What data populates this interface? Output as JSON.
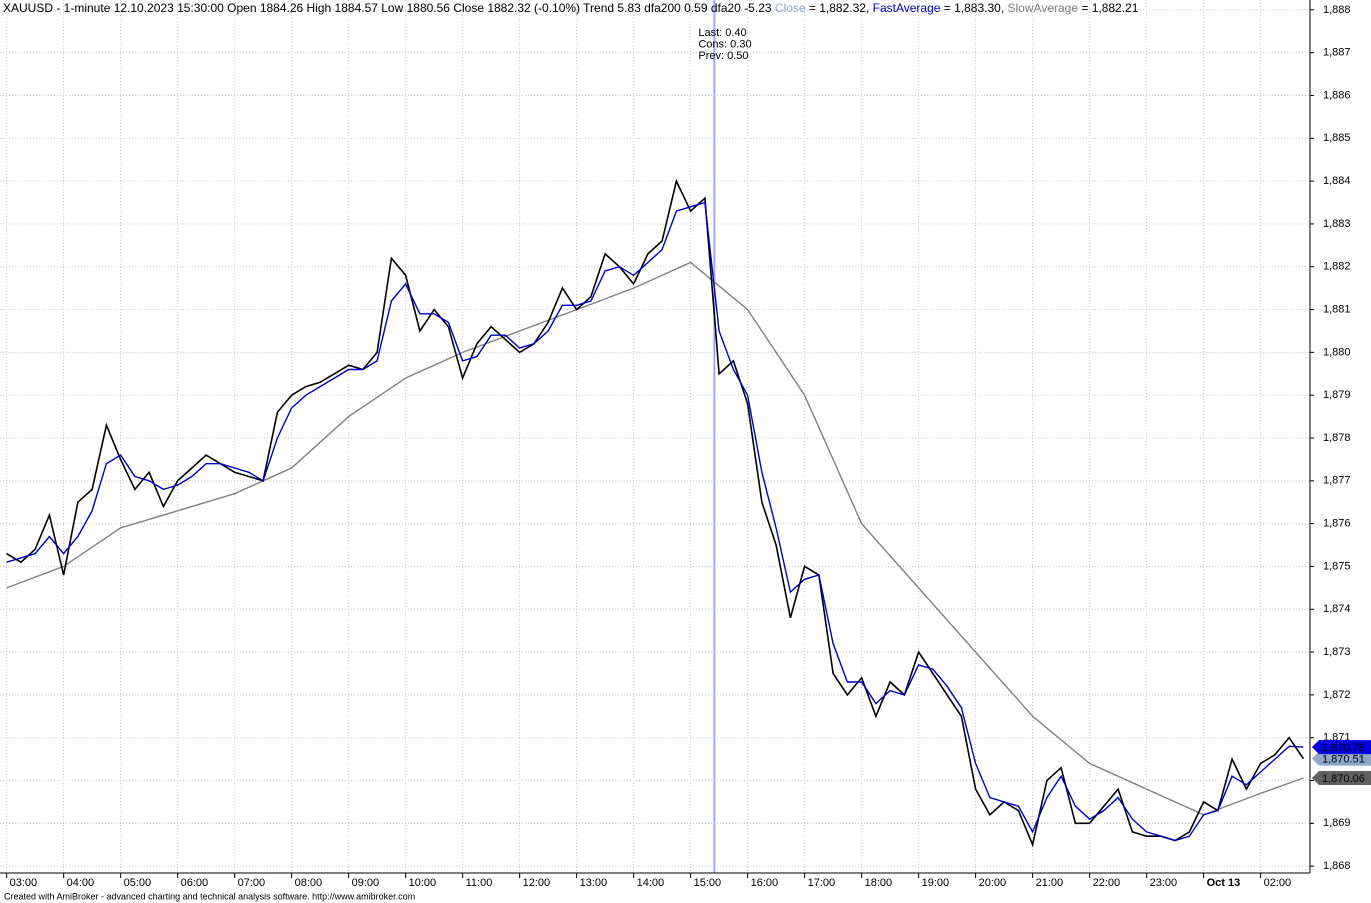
{
  "chart_data": {
    "type": "line",
    "title_parts": [
      {
        "text": "XAUUSD - 1-minute 12.10.2023 15:30:00 Open 1884.26 High 1884.57 Low 1880.56 Close 1882.32 (-0.10%) Trend 5.83 dfa200 0.59 dfa20 -5.23 ",
        "color": "#000000"
      },
      {
        "text": "Close",
        "color": "#8fa8c8"
      },
      {
        "text": " = 1,882.32, ",
        "color": "#000000"
      },
      {
        "text": "FastAverage",
        "color": "#0000c0"
      },
      {
        "text": " = 1,883.30, ",
        "color": "#000000"
      },
      {
        "text": "SlowAverage",
        "color": "#808080"
      },
      {
        "text": " = 1,882.21",
        "color": "#000000"
      }
    ],
    "cursor": {
      "x": 745,
      "color": "#9fa8ff",
      "label_color": "#008000",
      "labels": [
        "Last: 0.40",
        "Cons: 0.30",
        "Prev: 0.50"
      ]
    },
    "xlim": [
      -7,
      1372
    ],
    "xticks": [
      {
        "value": 0,
        "label": "03:00"
      },
      {
        "value": 60,
        "label": "04:00"
      },
      {
        "value": 120,
        "label": "05:00"
      },
      {
        "value": 180,
        "label": "06:00"
      },
      {
        "value": 240,
        "label": "07:00"
      },
      {
        "value": 300,
        "label": "08:00"
      },
      {
        "value": 360,
        "label": "09:00"
      },
      {
        "value": 420,
        "label": "10:00"
      },
      {
        "value": 480,
        "label": "11:00"
      },
      {
        "value": 540,
        "label": "12:00"
      },
      {
        "value": 600,
        "label": "13:00"
      },
      {
        "value": 660,
        "label": "14:00"
      },
      {
        "value": 720,
        "label": "15:00"
      },
      {
        "value": 780,
        "label": "16:00"
      },
      {
        "value": 840,
        "label": "17:00"
      },
      {
        "value": 900,
        "label": "18:00"
      },
      {
        "value": 960,
        "label": "19:00"
      },
      {
        "value": 1020,
        "label": "20:00"
      },
      {
        "value": 1080,
        "label": "21:00"
      },
      {
        "value": 1140,
        "label": "22:00"
      },
      {
        "value": 1200,
        "label": "23:00"
      },
      {
        "value": 1260,
        "label": "Oct 13"
      },
      {
        "value": 1320,
        "label": "02:00"
      }
    ],
    "ylim": [
      1867.84,
      1888.23
    ],
    "yticks": [
      {
        "value": 1868,
        "label": "1,868"
      },
      {
        "value": 1869,
        "label": "1,869"
      },
      {
        "value": 1870,
        "label": "1,870"
      },
      {
        "value": 1871,
        "label": "1,871"
      },
      {
        "value": 1872,
        "label": "1,872"
      },
      {
        "value": 1873,
        "label": "1,873"
      },
      {
        "value": 1874,
        "label": "1,874"
      },
      {
        "value": 1875,
        "label": "1,875"
      },
      {
        "value": 1876,
        "label": "1,876"
      },
      {
        "value": 1877,
        "label": "1,877"
      },
      {
        "value": 1878,
        "label": "1,878"
      },
      {
        "value": 1879,
        "label": "1,879"
      },
      {
        "value": 1880,
        "label": "1,880"
      },
      {
        "value": 1881,
        "label": "1,881"
      },
      {
        "value": 1882,
        "label": "1,882"
      },
      {
        "value": 1883,
        "label": "1,883"
      },
      {
        "value": 1884,
        "label": "1,884"
      },
      {
        "value": 1885,
        "label": "1,885"
      },
      {
        "value": 1886,
        "label": "1,886"
      },
      {
        "value": 1887,
        "label": "1,887"
      },
      {
        "value": 1888,
        "label": "1,888"
      }
    ],
    "grid": true,
    "series": [
      {
        "name": "SlowAverage",
        "color": "#808080",
        "label_bg": "#606060",
        "x": [
          0,
          60,
          120,
          180,
          240,
          300,
          360,
          420,
          480,
          540,
          600,
          660,
          720,
          780,
          840,
          900,
          960,
          1020,
          1080,
          1140,
          1200,
          1260,
          1320,
          1365
        ],
        "values": [
          1874.5,
          1875.0,
          1875.9,
          1876.3,
          1876.7,
          1877.3,
          1878.5,
          1879.4,
          1880.0,
          1880.5,
          1881.0,
          1881.5,
          1882.1,
          1881.0,
          1879.0,
          1876.0,
          1874.5,
          1873.0,
          1871.5,
          1870.4,
          1869.8,
          1869.2,
          1869.7,
          1870.06
        ],
        "value_labels": [
          null,
          null,
          null,
          null,
          null,
          null,
          null,
          null,
          null,
          null,
          null,
          null,
          null,
          null,
          null,
          null,
          null,
          null,
          null,
          null,
          null,
          null,
          null,
          "1,870.06"
        ]
      },
      {
        "name": "Close",
        "color": "#000000",
        "label_bg": "#8fa8c8",
        "x": [
          0,
          15,
          30,
          45,
          60,
          75,
          90,
          105,
          120,
          135,
          150,
          165,
          180,
          195,
          210,
          225,
          240,
          255,
          270,
          285,
          300,
          315,
          330,
          345,
          360,
          375,
          390,
          405,
          420,
          435,
          450,
          465,
          480,
          495,
          510,
          525,
          540,
          555,
          570,
          585,
          600,
          615,
          630,
          645,
          660,
          675,
          690,
          705,
          720,
          735,
          750,
          765,
          780,
          795,
          810,
          825,
          840,
          855,
          870,
          885,
          900,
          915,
          930,
          945,
          960,
          975,
          990,
          1005,
          1020,
          1035,
          1050,
          1065,
          1080,
          1095,
          1110,
          1125,
          1140,
          1155,
          1170,
          1185,
          1200,
          1215,
          1230,
          1245,
          1260,
          1275,
          1290,
          1305,
          1320,
          1335,
          1350,
          1365
        ],
        "values": [
          1875.3,
          1875.1,
          1875.4,
          1876.2,
          1874.8,
          1876.5,
          1876.8,
          1878.3,
          1877.5,
          1876.8,
          1877.2,
          1876.4,
          1877.0,
          1877.3,
          1877.6,
          1877.4,
          1877.2,
          1877.1,
          1877.0,
          1878.6,
          1879.0,
          1879.2,
          1879.3,
          1879.5,
          1879.7,
          1879.6,
          1880.0,
          1882.2,
          1881.8,
          1880.5,
          1881.0,
          1880.6,
          1879.4,
          1880.2,
          1880.6,
          1880.3,
          1880.0,
          1880.2,
          1880.7,
          1881.5,
          1881.0,
          1881.3,
          1882.3,
          1882.0,
          1881.6,
          1882.3,
          1882.6,
          1884.0,
          1883.3,
          1883.6,
          1879.5,
          1879.8,
          1878.8,
          1876.5,
          1875.5,
          1873.8,
          1875.0,
          1874.8,
          1872.5,
          1872.0,
          1872.4,
          1871.5,
          1872.3,
          1872.0,
          1873.0,
          1872.5,
          1872.0,
          1871.5,
          1869.8,
          1869.2,
          1869.5,
          1869.3,
          1868.5,
          1870.0,
          1870.3,
          1869.0,
          1869.0,
          1869.4,
          1869.8,
          1868.8,
          1868.7,
          1868.7,
          1868.6,
          1868.8,
          1869.5,
          1869.3,
          1870.5,
          1869.8,
          1870.4,
          1870.6,
          1871.0,
          1870.51
        ],
        "value_labels": [
          null,
          null,
          null,
          null,
          null,
          null,
          null,
          null,
          null,
          null,
          null,
          null,
          null,
          null,
          null,
          null,
          null,
          null,
          null,
          null,
          null,
          null,
          null,
          null,
          null,
          null,
          null,
          null,
          null,
          null,
          null,
          null,
          null,
          null,
          null,
          null,
          null,
          null,
          null,
          null,
          null,
          null,
          null,
          null,
          null,
          null,
          null,
          null,
          null,
          null,
          null,
          null,
          null,
          null,
          null,
          null,
          null,
          null,
          null,
          null,
          null,
          null,
          null,
          null,
          null,
          null,
          null,
          null,
          null,
          null,
          null,
          null,
          null,
          null,
          null,
          null,
          null,
          null,
          null,
          null,
          null,
          null,
          null,
          null,
          null,
          null,
          null,
          null,
          null,
          null,
          null,
          "1,870.51"
        ]
      },
      {
        "name": "FastAverage",
        "color": "#0000c0",
        "label_bg": "#0000e0",
        "x": [
          0,
          15,
          30,
          45,
          60,
          75,
          90,
          105,
          120,
          135,
          150,
          165,
          180,
          195,
          210,
          225,
          240,
          255,
          270,
          285,
          300,
          315,
          330,
          345,
          360,
          375,
          390,
          405,
          420,
          435,
          450,
          465,
          480,
          495,
          510,
          525,
          540,
          555,
          570,
          585,
          600,
          615,
          630,
          645,
          660,
          675,
          690,
          705,
          720,
          735,
          750,
          765,
          780,
          795,
          810,
          825,
          840,
          855,
          870,
          885,
          900,
          915,
          930,
          945,
          960,
          975,
          990,
          1005,
          1020,
          1035,
          1050,
          1065,
          1080,
          1095,
          1110,
          1125,
          1140,
          1155,
          1170,
          1185,
          1200,
          1215,
          1230,
          1245,
          1260,
          1275,
          1290,
          1305,
          1320,
          1335,
          1350,
          1365
        ],
        "values": [
          1875.1,
          1875.2,
          1875.3,
          1875.7,
          1875.3,
          1875.7,
          1876.3,
          1877.4,
          1877.6,
          1877.1,
          1877.0,
          1876.8,
          1876.9,
          1877.1,
          1877.4,
          1877.4,
          1877.3,
          1877.2,
          1877.0,
          1878.0,
          1878.7,
          1879.0,
          1879.2,
          1879.4,
          1879.6,
          1879.6,
          1879.8,
          1881.2,
          1881.6,
          1880.9,
          1880.9,
          1880.7,
          1879.8,
          1879.9,
          1880.4,
          1880.4,
          1880.1,
          1880.2,
          1880.5,
          1881.1,
          1881.1,
          1881.2,
          1881.9,
          1882.0,
          1881.8,
          1882.1,
          1882.4,
          1883.3,
          1883.4,
          1883.5,
          1880.5,
          1879.6,
          1879.0,
          1877.2,
          1875.9,
          1874.4,
          1874.7,
          1874.8,
          1873.2,
          1872.3,
          1872.3,
          1871.8,
          1872.1,
          1872.0,
          1872.7,
          1872.6,
          1872.2,
          1871.7,
          1870.4,
          1869.6,
          1869.5,
          1869.4,
          1868.8,
          1869.6,
          1870.1,
          1869.4,
          1869.1,
          1869.3,
          1869.6,
          1869.1,
          1868.8,
          1868.7,
          1868.6,
          1868.7,
          1869.2,
          1869.3,
          1870.1,
          1869.9,
          1870.2,
          1870.5,
          1870.8,
          1870.78
        ],
        "value_labels": [
          null,
          null,
          null,
          null,
          null,
          null,
          null,
          null,
          null,
          null,
          null,
          null,
          null,
          null,
          null,
          null,
          null,
          null,
          null,
          null,
          null,
          null,
          null,
          null,
          null,
          null,
          null,
          null,
          null,
          null,
          null,
          null,
          null,
          null,
          null,
          null,
          null,
          null,
          null,
          null,
          null,
          null,
          null,
          null,
          null,
          null,
          null,
          null,
          null,
          null,
          null,
          null,
          null,
          null,
          null,
          null,
          null,
          null,
          null,
          null,
          null,
          null,
          null,
          null,
          null,
          null,
          null,
          null,
          null,
          null,
          null,
          null,
          null,
          null,
          null,
          null,
          null,
          null,
          null,
          null,
          null,
          null,
          null,
          null,
          null,
          null,
          null,
          null,
          null,
          null,
          null,
          "1,870.78"
        ]
      }
    ]
  },
  "footer": "Created with AmiBroker - advanced charting and technical analysis software. http://www.amibroker.com"
}
